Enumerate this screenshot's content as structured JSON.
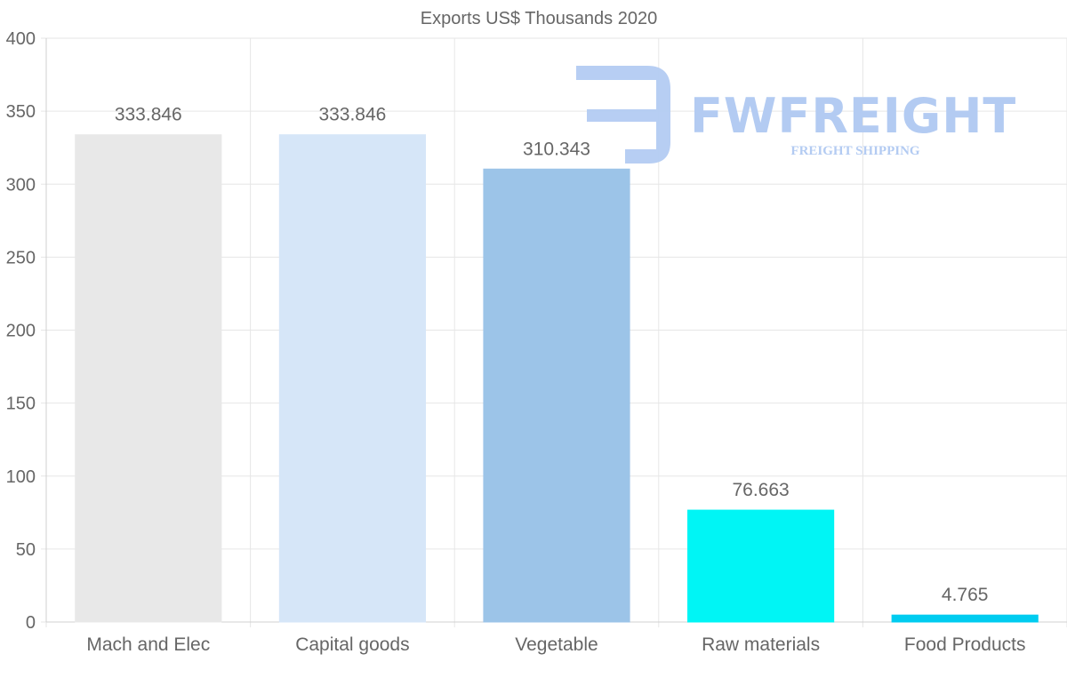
{
  "chart_data": {
    "type": "bar",
    "title": "Exports US$ Thousands 2020",
    "categories": [
      "Mach and Elec",
      "Capital goods",
      "Vegetable",
      "Raw materials",
      "Food Products"
    ],
    "values": [
      333.846,
      333.846,
      310.343,
      76.663,
      4.765
    ],
    "value_labels": [
      "333.846",
      "333.846",
      "310.343",
      "76.663",
      "4.765"
    ],
    "bar_colors": [
      "#e8e8e8",
      "#d6e6f8",
      "#9cc4e8",
      "#00f5f5",
      "#00ccf0"
    ],
    "ylim": [
      0,
      400
    ],
    "yticks": [
      0,
      50,
      100,
      150,
      200,
      250,
      300,
      350,
      400
    ],
    "xlabel": "",
    "ylabel": "",
    "grid": true
  },
  "watermark": {
    "name": "FWFREIGHT",
    "tagline": "FREIGHT SHIPPING",
    "color": "#b3cbf2"
  }
}
